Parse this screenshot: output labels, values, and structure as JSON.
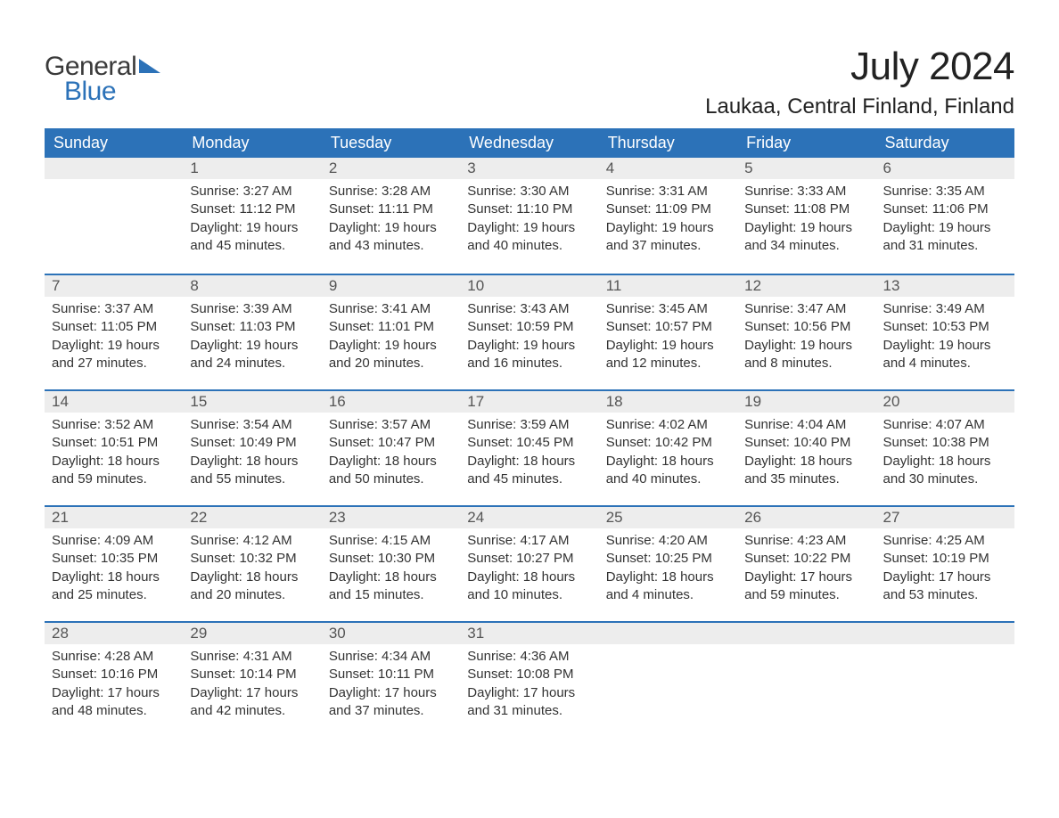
{
  "logo": {
    "text_general": "General",
    "text_blue": "Blue",
    "triangle_color": "#2c72b8"
  },
  "title": "July 2024",
  "location": "Laukaa, Central Finland, Finland",
  "colors": {
    "header_bg": "#2c72b8",
    "header_text": "#ffffff",
    "daynum_bg": "#ededed",
    "daynum_border": "#2c72b8",
    "body_text": "#333333",
    "background": "#ffffff"
  },
  "typography": {
    "title_fontsize": 44,
    "location_fontsize": 24,
    "header_fontsize": 18,
    "daynum_fontsize": 17,
    "cell_fontsize": 15
  },
  "day_headers": [
    "Sunday",
    "Monday",
    "Tuesday",
    "Wednesday",
    "Thursday",
    "Friday",
    "Saturday"
  ],
  "weeks": [
    [
      {
        "empty": true
      },
      {
        "day": "1",
        "sunrise": "Sunrise: 3:27 AM",
        "sunset": "Sunset: 11:12 PM",
        "daylight1": "Daylight: 19 hours",
        "daylight2": "and 45 minutes."
      },
      {
        "day": "2",
        "sunrise": "Sunrise: 3:28 AM",
        "sunset": "Sunset: 11:11 PM",
        "daylight1": "Daylight: 19 hours",
        "daylight2": "and 43 minutes."
      },
      {
        "day": "3",
        "sunrise": "Sunrise: 3:30 AM",
        "sunset": "Sunset: 11:10 PM",
        "daylight1": "Daylight: 19 hours",
        "daylight2": "and 40 minutes."
      },
      {
        "day": "4",
        "sunrise": "Sunrise: 3:31 AM",
        "sunset": "Sunset: 11:09 PM",
        "daylight1": "Daylight: 19 hours",
        "daylight2": "and 37 minutes."
      },
      {
        "day": "5",
        "sunrise": "Sunrise: 3:33 AM",
        "sunset": "Sunset: 11:08 PM",
        "daylight1": "Daylight: 19 hours",
        "daylight2": "and 34 minutes."
      },
      {
        "day": "6",
        "sunrise": "Sunrise: 3:35 AM",
        "sunset": "Sunset: 11:06 PM",
        "daylight1": "Daylight: 19 hours",
        "daylight2": "and 31 minutes."
      }
    ],
    [
      {
        "day": "7",
        "sunrise": "Sunrise: 3:37 AM",
        "sunset": "Sunset: 11:05 PM",
        "daylight1": "Daylight: 19 hours",
        "daylight2": "and 27 minutes."
      },
      {
        "day": "8",
        "sunrise": "Sunrise: 3:39 AM",
        "sunset": "Sunset: 11:03 PM",
        "daylight1": "Daylight: 19 hours",
        "daylight2": "and 24 minutes."
      },
      {
        "day": "9",
        "sunrise": "Sunrise: 3:41 AM",
        "sunset": "Sunset: 11:01 PM",
        "daylight1": "Daylight: 19 hours",
        "daylight2": "and 20 minutes."
      },
      {
        "day": "10",
        "sunrise": "Sunrise: 3:43 AM",
        "sunset": "Sunset: 10:59 PM",
        "daylight1": "Daylight: 19 hours",
        "daylight2": "and 16 minutes."
      },
      {
        "day": "11",
        "sunrise": "Sunrise: 3:45 AM",
        "sunset": "Sunset: 10:57 PM",
        "daylight1": "Daylight: 19 hours",
        "daylight2": "and 12 minutes."
      },
      {
        "day": "12",
        "sunrise": "Sunrise: 3:47 AM",
        "sunset": "Sunset: 10:56 PM",
        "daylight1": "Daylight: 19 hours",
        "daylight2": "and 8 minutes."
      },
      {
        "day": "13",
        "sunrise": "Sunrise: 3:49 AM",
        "sunset": "Sunset: 10:53 PM",
        "daylight1": "Daylight: 19 hours",
        "daylight2": "and 4 minutes."
      }
    ],
    [
      {
        "day": "14",
        "sunrise": "Sunrise: 3:52 AM",
        "sunset": "Sunset: 10:51 PM",
        "daylight1": "Daylight: 18 hours",
        "daylight2": "and 59 minutes."
      },
      {
        "day": "15",
        "sunrise": "Sunrise: 3:54 AM",
        "sunset": "Sunset: 10:49 PM",
        "daylight1": "Daylight: 18 hours",
        "daylight2": "and 55 minutes."
      },
      {
        "day": "16",
        "sunrise": "Sunrise: 3:57 AM",
        "sunset": "Sunset: 10:47 PM",
        "daylight1": "Daylight: 18 hours",
        "daylight2": "and 50 minutes."
      },
      {
        "day": "17",
        "sunrise": "Sunrise: 3:59 AM",
        "sunset": "Sunset: 10:45 PM",
        "daylight1": "Daylight: 18 hours",
        "daylight2": "and 45 minutes."
      },
      {
        "day": "18",
        "sunrise": "Sunrise: 4:02 AM",
        "sunset": "Sunset: 10:42 PM",
        "daylight1": "Daylight: 18 hours",
        "daylight2": "and 40 minutes."
      },
      {
        "day": "19",
        "sunrise": "Sunrise: 4:04 AM",
        "sunset": "Sunset: 10:40 PM",
        "daylight1": "Daylight: 18 hours",
        "daylight2": "and 35 minutes."
      },
      {
        "day": "20",
        "sunrise": "Sunrise: 4:07 AM",
        "sunset": "Sunset: 10:38 PM",
        "daylight1": "Daylight: 18 hours",
        "daylight2": "and 30 minutes."
      }
    ],
    [
      {
        "day": "21",
        "sunrise": "Sunrise: 4:09 AM",
        "sunset": "Sunset: 10:35 PM",
        "daylight1": "Daylight: 18 hours",
        "daylight2": "and 25 minutes."
      },
      {
        "day": "22",
        "sunrise": "Sunrise: 4:12 AM",
        "sunset": "Sunset: 10:32 PM",
        "daylight1": "Daylight: 18 hours",
        "daylight2": "and 20 minutes."
      },
      {
        "day": "23",
        "sunrise": "Sunrise: 4:15 AM",
        "sunset": "Sunset: 10:30 PM",
        "daylight1": "Daylight: 18 hours",
        "daylight2": "and 15 minutes."
      },
      {
        "day": "24",
        "sunrise": "Sunrise: 4:17 AM",
        "sunset": "Sunset: 10:27 PM",
        "daylight1": "Daylight: 18 hours",
        "daylight2": "and 10 minutes."
      },
      {
        "day": "25",
        "sunrise": "Sunrise: 4:20 AM",
        "sunset": "Sunset: 10:25 PM",
        "daylight1": "Daylight: 18 hours",
        "daylight2": "and 4 minutes."
      },
      {
        "day": "26",
        "sunrise": "Sunrise: 4:23 AM",
        "sunset": "Sunset: 10:22 PM",
        "daylight1": "Daylight: 17 hours",
        "daylight2": "and 59 minutes."
      },
      {
        "day": "27",
        "sunrise": "Sunrise: 4:25 AM",
        "sunset": "Sunset: 10:19 PM",
        "daylight1": "Daylight: 17 hours",
        "daylight2": "and 53 minutes."
      }
    ],
    [
      {
        "day": "28",
        "sunrise": "Sunrise: 4:28 AM",
        "sunset": "Sunset: 10:16 PM",
        "daylight1": "Daylight: 17 hours",
        "daylight2": "and 48 minutes."
      },
      {
        "day": "29",
        "sunrise": "Sunrise: 4:31 AM",
        "sunset": "Sunset: 10:14 PM",
        "daylight1": "Daylight: 17 hours",
        "daylight2": "and 42 minutes."
      },
      {
        "day": "30",
        "sunrise": "Sunrise: 4:34 AM",
        "sunset": "Sunset: 10:11 PM",
        "daylight1": "Daylight: 17 hours",
        "daylight2": "and 37 minutes."
      },
      {
        "day": "31",
        "sunrise": "Sunrise: 4:36 AM",
        "sunset": "Sunset: 10:08 PM",
        "daylight1": "Daylight: 17 hours",
        "daylight2": "and 31 minutes."
      },
      {
        "empty": true
      },
      {
        "empty": true
      },
      {
        "empty": true
      }
    ]
  ]
}
